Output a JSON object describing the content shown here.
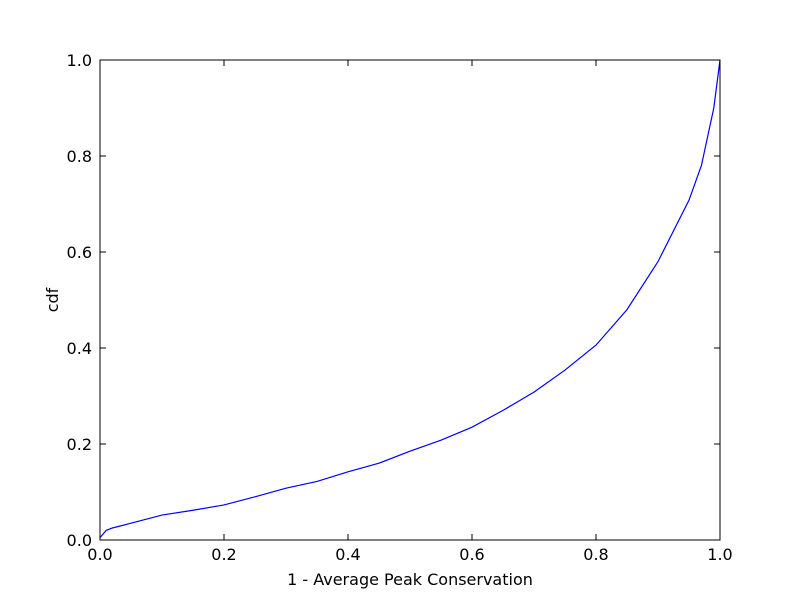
{
  "chart_data": {
    "type": "line",
    "xlabel": "1 - Average Peak Conservation",
    "ylabel": "cdf",
    "x": [
      0,
      0.01,
      0.02,
      0.05,
      0.1,
      0.15,
      0.2,
      0.25,
      0.3,
      0.35,
      0.4,
      0.45,
      0.5,
      0.55,
      0.6,
      0.65,
      0.7,
      0.75,
      0.8,
      0.85,
      0.9,
      0.95,
      0.97,
      0.99,
      1.0
    ],
    "series": [
      {
        "color": "#0000ff",
        "values": [
          0.005,
          0.02,
          0.025,
          0.035,
          0.052,
          0.062,
          0.073,
          0.09,
          0.108,
          0.122,
          0.142,
          0.16,
          0.185,
          0.208,
          0.235,
          0.27,
          0.308,
          0.354,
          0.406,
          0.48,
          0.58,
          0.708,
          0.78,
          0.9,
          1.0
        ]
      }
    ],
    "xlim": [
      0,
      1
    ],
    "ylim": [
      0,
      1
    ],
    "xticks": [
      {
        "value": 0,
        "label": "0.0"
      },
      0.2,
      0.4,
      0.6,
      0.8,
      {
        "value": 1,
        "label": "1.0"
      }
    ],
    "yticks": [
      {
        "value": 0,
        "label": "0.0"
      },
      0.2,
      0.4,
      0.6,
      0.8,
      {
        "value": 1,
        "label": "1.0"
      }
    ],
    "grid": false
  }
}
